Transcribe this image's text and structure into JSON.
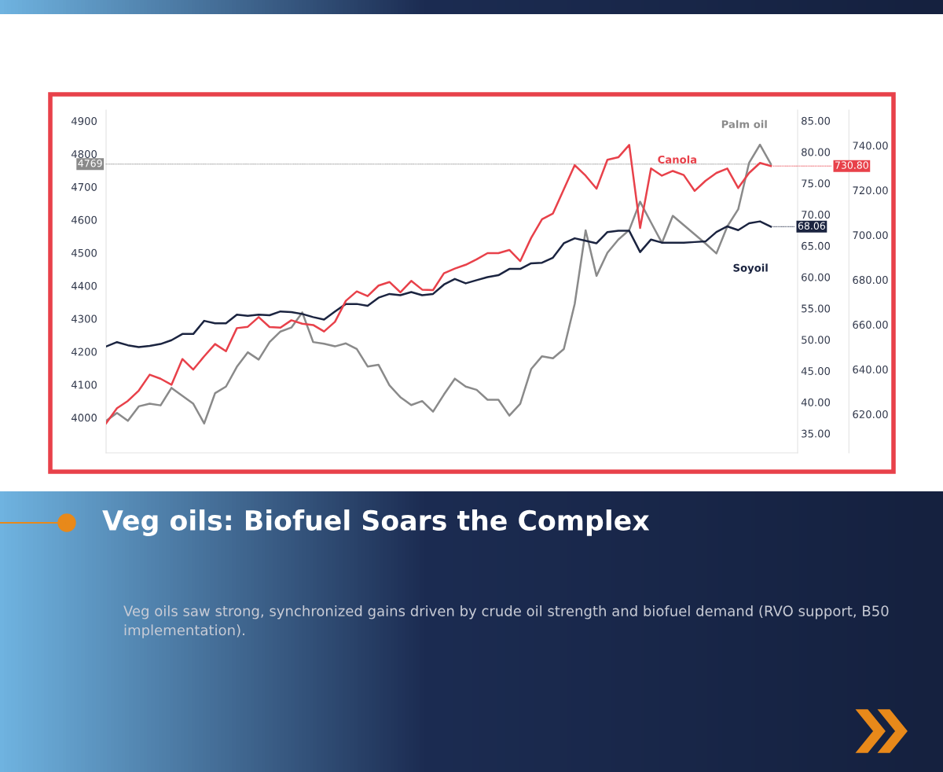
{
  "chart_data": {
    "type": "line",
    "title": "Veg oils: Biofuel Soars the Complex",
    "subtitle": "Veg oils saw strong, synchronized gains driven by crude oil strength and biofuel demand (RVO support, B50 implementation).",
    "categories": [
      null,
      null,
      null,
      null,
      null,
      null,
      null,
      null,
      null,
      null,
      null,
      null,
      null,
      null,
      null,
      null,
      null,
      null,
      null,
      null,
      null,
      null,
      null,
      null,
      null,
      null,
      null,
      null,
      null,
      null,
      null,
      null,
      null,
      null,
      null,
      null,
      null,
      null,
      null,
      null,
      null,
      null,
      null,
      null,
      null,
      null,
      null,
      null,
      null,
      null,
      null,
      null,
      null,
      null,
      null,
      null,
      null,
      null,
      null,
      null,
      null,
      null
    ],
    "series": [
      {
        "name": "Palm oil",
        "color": "#8a8a8a",
        "values": [
          3990,
          4014,
          3990,
          4034,
          4042,
          4037,
          4090,
          4066,
          4042,
          3982,
          4074,
          4094,
          4154,
          4198,
          4176,
          4229,
          4261,
          4273,
          4319,
          4229,
          4224,
          4216,
          4225,
          4208,
          4155,
          4160,
          4098,
          4062,
          4038,
          4050,
          4018,
          4070,
          4118,
          4094,
          4084,
          4054,
          4054,
          4006,
          4042,
          4147,
          4186,
          4180,
          4208,
          4345,
          4568,
          4430,
          4500,
          4540,
          4569,
          4655,
          4592,
          4530,
          4612,
          4584,
          4556,
          4528,
          4498,
          4580,
          4632,
          4773,
          4828,
          4769
        ],
        "value_labels": [
          null,
          null,
          null,
          null,
          null,
          null,
          null,
          null,
          null,
          null,
          null,
          null,
          null,
          null,
          null,
          null,
          null,
          null,
          null,
          null,
          null,
          null,
          null,
          null,
          null,
          null,
          null,
          null,
          null,
          null,
          null,
          null,
          null,
          null,
          null,
          null,
          null,
          null,
          null,
          null,
          null,
          null,
          null,
          null,
          null,
          null,
          null,
          null,
          null,
          null,
          null,
          null,
          null,
          null,
          null,
          null,
          null,
          null,
          null,
          null,
          null,
          "4769"
        ]
      },
      {
        "name": "Soyoil",
        "color": "#1b2440",
        "axis": "y2",
        "values": [
          48.9,
          49.6,
          49.1,
          48.8,
          49.0,
          49.3,
          49.9,
          50.9,
          50.9,
          53.0,
          52.6,
          52.6,
          54.0,
          53.8,
          54.0,
          53.9,
          54.5,
          54.4,
          54.1,
          53.6,
          53.2,
          54.5,
          55.7,
          55.7,
          55.4,
          56.7,
          57.3,
          57.1,
          57.6,
          57.1,
          57.3,
          58.8,
          59.7,
          59.0,
          59.5,
          60.0,
          60.3,
          61.3,
          61.3,
          62.2,
          62.3,
          63.1,
          65.4,
          66.2,
          65.8,
          65.4,
          67.2,
          67.4,
          67.4,
          64.0,
          66.0,
          65.5,
          65.5,
          65.5,
          65.6,
          65.7,
          67.2,
          68.1,
          67.5,
          68.6,
          68.9,
          68.06
        ],
        "value_labels": [
          null,
          null,
          null,
          null,
          null,
          null,
          null,
          null,
          null,
          null,
          null,
          null,
          null,
          null,
          null,
          null,
          null,
          null,
          null,
          null,
          null,
          null,
          null,
          null,
          null,
          null,
          null,
          null,
          null,
          null,
          null,
          null,
          null,
          null,
          null,
          null,
          null,
          null,
          null,
          null,
          null,
          null,
          null,
          null,
          null,
          null,
          null,
          null,
          null,
          null,
          null,
          null,
          null,
          null,
          null,
          null,
          null,
          null,
          null,
          null,
          null,
          "68.06"
        ]
      },
      {
        "name": "Canola",
        "color": "#e8414a",
        "axis": "y3",
        "values": [
          615.9,
          622.6,
          625.9,
          630.5,
          637.6,
          635.8,
          633.1,
          644.6,
          639.9,
          645.8,
          651.3,
          648.1,
          658.4,
          659.0,
          663.3,
          658.9,
          658.6,
          661.9,
          660.4,
          659.8,
          656.9,
          661.2,
          670.6,
          674.8,
          672.7,
          677.4,
          679.0,
          674.4,
          679.5,
          675.6,
          675.4,
          682.9,
          685.0,
          686.7,
          689.1,
          691.9,
          691.9,
          693.3,
          688.3,
          698.7,
          707.0,
          709.6,
          720.4,
          731.2,
          726.5,
          720.7,
          733.6,
          734.7,
          740.2,
          703.1,
          729.7,
          726.5,
          728.6,
          726.8,
          719.7,
          724.2,
          727.7,
          729.7,
          721.0,
          727.7,
          732.2,
          730.8
        ],
        "value_labels": [
          null,
          null,
          null,
          null,
          null,
          null,
          null,
          null,
          null,
          null,
          null,
          null,
          null,
          null,
          null,
          null,
          null,
          null,
          null,
          null,
          null,
          null,
          null,
          null,
          null,
          null,
          null,
          null,
          null,
          null,
          null,
          null,
          null,
          null,
          null,
          null,
          null,
          null,
          null,
          null,
          null,
          null,
          null,
          null,
          null,
          null,
          null,
          null,
          null,
          null,
          null,
          null,
          null,
          null,
          null,
          null,
          null,
          null,
          null,
          null,
          null,
          "730.80"
        ]
      }
    ],
    "ylim": [
      3893,
      4933
    ],
    "yticks": [
      4000,
      4100,
      4200,
      4300,
      4400,
      4500,
      4600,
      4700,
      4800,
      4900
    ],
    "y2lim": [
      31.9,
      86.7
    ],
    "y2ticks": [
      {
        "value": 35,
        "label": "35.00"
      },
      {
        "value": 40,
        "label": "40.00"
      },
      {
        "value": 45,
        "label": "45.00"
      },
      {
        "value": 50,
        "label": "50.00"
      },
      {
        "value": 55,
        "label": "55.00"
      },
      {
        "value": 60,
        "label": "60.00"
      },
      {
        "value": 65,
        "label": "65.00"
      },
      {
        "value": 70,
        "label": "70.00"
      },
      {
        "value": 75,
        "label": "75.00"
      },
      {
        "value": 80,
        "label": "80.00"
      },
      {
        "value": 85,
        "label": "85.00"
      }
    ],
    "y3lim": [
      602.7,
      755.8
    ],
    "y3ticks": [
      {
        "value": 620,
        "label": "620.00"
      },
      {
        "value": 640,
        "label": "640.00"
      },
      {
        "value": 660,
        "label": "660.00"
      },
      {
        "value": 680,
        "label": "680.00"
      },
      {
        "value": 700,
        "label": "700.00"
      },
      {
        "value": 720,
        "label": "720.00"
      },
      {
        "value": 740,
        "label": "740.00"
      }
    ],
    "tick_labels": "y",
    "grid": false,
    "legend": false,
    "marker": "none",
    "line_style": "solid"
  }
}
